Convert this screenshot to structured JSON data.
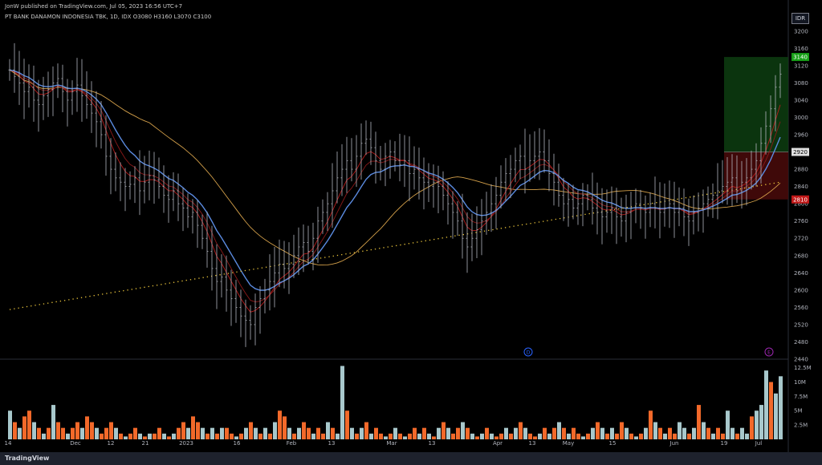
{
  "publisher_line": "JonW published on TradingView.com, Jul 05, 2023 16:56 UTC+7",
  "symbol_line": "PT BANK DANAMON INDONESIA TBK, 1D, IDX  O3080  H3160  L3070  C3100",
  "currency_label": "IDR",
  "footer_logo": "TradingView",
  "markers": {
    "earnings": "E",
    "dividend": "D"
  },
  "colors": {
    "background": "#000000",
    "price_bar": "#b2b5be",
    "ema_blue": "#5b8be0",
    "ma_red": "#b71c1c",
    "ma_dark_red": "#8b1a1a",
    "ma_orange": "#d4a04a",
    "dotted_ma": "#e8c33b",
    "vol_up": "#a8c8cc",
    "vol_down": "#f2692a",
    "target_zone": "#0d3d10",
    "stop_zone": "#4a0b0b",
    "target_label": "#17a017",
    "stop_label": "#c01818"
  },
  "chart_data": {
    "type": "ohlc_bar",
    "price_axis_ticks": [
      3200,
      3160,
      3120,
      3080,
      3040,
      3000,
      2960,
      2920,
      2880,
      2840,
      2800,
      2760,
      2720,
      2680,
      2640,
      2600,
      2560,
      2520,
      2480,
      2440
    ],
    "ylim": [
      2440,
      3220
    ],
    "volume_axis_ticks": [
      "12.5M",
      "10M",
      "7.5M",
      "5M",
      "2.5M"
    ],
    "volume_ylim": [
      0,
      13000000
    ],
    "time_axis_labels": [
      "14",
      "Dec",
      "12",
      "21",
      "2023",
      "16",
      "Feb",
      "13",
      "Mar",
      "13",
      "Apr",
      "13",
      "May",
      "15",
      "Jun",
      "19",
      "Jul"
    ],
    "price_labels": {
      "target": "3140",
      "entry": "2920",
      "stop": "2810"
    },
    "position": {
      "entry": 2920,
      "target": 3140,
      "stop": 2810
    },
    "close_series": [
      3110,
      3095,
      3080,
      3060,
      3070,
      3040,
      3030,
      3050,
      3065,
      3080,
      3090,
      3060,
      3040,
      3060,
      3075,
      3050,
      3030,
      3010,
      2990,
      2960,
      2910,
      2880,
      2860,
      2850,
      2840,
      2845,
      2860,
      2830,
      2850,
      2865,
      2855,
      2840,
      2820,
      2810,
      2830,
      2800,
      2790,
      2770,
      2780,
      2750,
      2720,
      2690,
      2650,
      2620,
      2630,
      2600,
      2580,
      2560,
      2540,
      2530,
      2520,
      2560,
      2580,
      2600,
      2620,
      2640,
      2660,
      2650,
      2660,
      2680,
      2700,
      2710,
      2690,
      2720,
      2760,
      2780,
      2800,
      2830,
      2860,
      2880,
      2900,
      2880,
      2910,
      2940,
      2950,
      2930,
      2900,
      2880,
      2910,
      2920,
      2900,
      2890,
      2900,
      2870,
      2880,
      2860,
      2850,
      2840,
      2850,
      2840,
      2820,
      2800,
      2780,
      2760,
      2720,
      2700,
      2720,
      2740,
      2760,
      2780,
      2800,
      2820,
      2850,
      2870,
      2880,
      2900,
      2910,
      2880,
      2900,
      2910,
      2920,
      2900,
      2870,
      2850,
      2820,
      2800,
      2810,
      2790,
      2800,
      2820,
      2810,
      2790,
      2780,
      2770,
      2780,
      2790,
      2770,
      2760,
      2780,
      2790,
      2800,
      2790,
      2780,
      2800,
      2790,
      2780,
      2790,
      2800,
      2780,
      2790,
      2770,
      2760,
      2780,
      2790,
      2800,
      2810,
      2820,
      2830,
      2840,
      2850,
      2860,
      2830,
      2850,
      2860,
      2880,
      2900,
      2940,
      2980,
      3020,
      3070,
      3100
    ],
    "volume_series_m": [
      5,
      3,
      2,
      4,
      5,
      3,
      2,
      1,
      2,
      6,
      3,
      2,
      1,
      2,
      3,
      2,
      4,
      3,
      2,
      1,
      2,
      3,
      2,
      1,
      0.5,
      1,
      2,
      1,
      0.5,
      1,
      1,
      2,
      1,
      0.5,
      1,
      2,
      3,
      2,
      4,
      3,
      2,
      1,
      2,
      1,
      2,
      2,
      1,
      0.5,
      1,
      2,
      3,
      2,
      1,
      2,
      1,
      3,
      5,
      4,
      2,
      1,
      2,
      3,
      2,
      1,
      2,
      1,
      3,
      2,
      1,
      12.8,
      5,
      2,
      1,
      2,
      3,
      1,
      2,
      1,
      0.5,
      1,
      2,
      1,
      0.5,
      1,
      2,
      1,
      2,
      1,
      0.5,
      2,
      3,
      2,
      1,
      2,
      3,
      2,
      1,
      0.5,
      1,
      2,
      1,
      0.5,
      1,
      2,
      1,
      2,
      3,
      2,
      1,
      0.5,
      1,
      2,
      1,
      2,
      3,
      2,
      1,
      2,
      1,
      0.5,
      1,
      2,
      3,
      2,
      1,
      2,
      1,
      3,
      2,
      1,
      0.5,
      1,
      2,
      5,
      3,
      2,
      1,
      2,
      1,
      3,
      2,
      1,
      2,
      6,
      3,
      2,
      1,
      2,
      1,
      5,
      2,
      1,
      2,
      1,
      4,
      5,
      6,
      12,
      10,
      8,
      11
    ],
    "volume_up_flags": [
      1,
      0,
      1,
      0,
      0,
      1,
      0,
      1,
      0,
      1,
      0,
      0,
      1,
      0,
      0,
      1,
      0,
      0,
      1,
      0,
      0,
      0,
      1,
      0,
      1,
      0,
      0,
      1,
      0,
      1,
      0,
      0,
      1,
      0,
      1,
      0,
      0,
      1,
      0,
      0,
      1,
      0,
      1,
      0,
      1,
      0,
      0,
      1,
      0,
      1,
      0,
      1,
      0,
      1,
      0,
      1,
      0,
      0,
      1,
      0,
      1,
      0,
      0,
      1,
      0,
      0,
      1,
      0,
      1,
      1,
      0,
      1,
      0,
      1,
      0,
      1,
      0,
      0,
      1,
      0,
      1,
      0,
      1,
      0,
      0,
      1,
      0,
      1,
      0,
      1,
      0,
      1,
      0,
      0,
      1,
      0,
      1,
      0,
      1,
      0,
      1,
      0,
      0,
      1,
      0,
      1,
      0,
      1,
      0,
      0,
      1,
      0,
      1,
      0,
      1,
      0,
      1,
      0,
      0,
      1,
      0,
      1,
      0,
      1,
      0,
      1,
      0,
      0,
      1,
      0,
      1,
      0,
      1,
      0,
      1,
      0,
      1,
      0,
      0,
      1,
      1,
      0,
      1,
      0,
      1,
      0,
      1,
      0,
      0,
      1,
      1,
      0,
      1,
      1,
      0,
      1,
      1,
      1,
      0,
      1,
      1
    ]
  }
}
